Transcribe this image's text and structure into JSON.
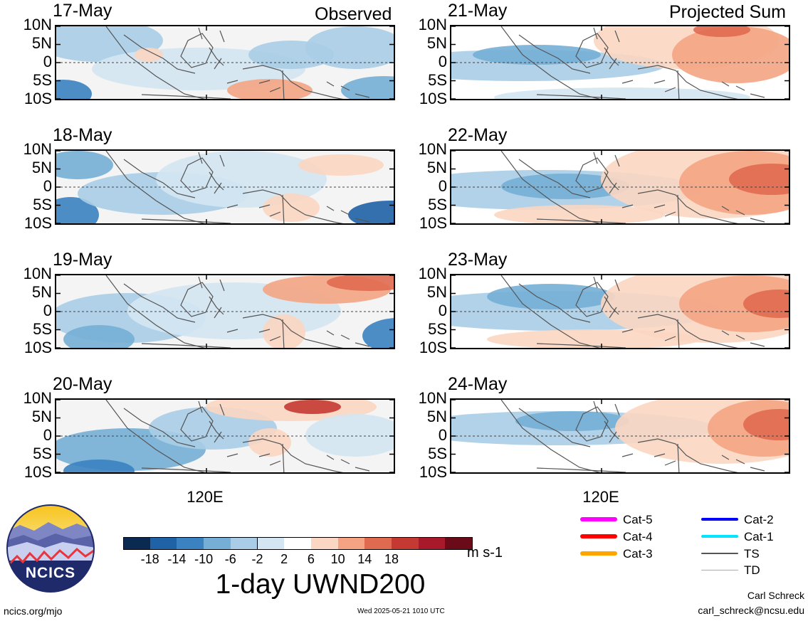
{
  "header": {
    "left_label": "Observed",
    "right_label": "Projected Sum"
  },
  "observed_panels": [
    {
      "date": "17-May"
    },
    {
      "date": "18-May"
    },
    {
      "date": "19-May"
    },
    {
      "date": "20-May"
    }
  ],
  "projected_panels": [
    {
      "date": "21-May"
    },
    {
      "date": "22-May"
    },
    {
      "date": "23-May"
    },
    {
      "date": "24-May"
    }
  ],
  "axes": {
    "lat_labels": [
      "10N",
      "5N",
      "0",
      "5S",
      "10S"
    ],
    "lon_label": "120E"
  },
  "colorbar": {
    "tick_labels": [
      "-18",
      "-14",
      "-10",
      "-6",
      "-2",
      "2",
      "6",
      "10",
      "14",
      "18"
    ],
    "colors": [
      "#0b2a52",
      "#1f62a6",
      "#3a82c0",
      "#76afd6",
      "#a9cde6",
      "#d4e6f2",
      "#ffffff",
      "#fbd6c2",
      "#f4a483",
      "#e06a50",
      "#c43a33",
      "#a81a2a",
      "#6b0a18"
    ],
    "units": "m s-1",
    "title": "1-day UWND200"
  },
  "storm_legend": [
    {
      "label": "Cat-5",
      "color": "#ff00ff",
      "width": 6
    },
    {
      "label": "Cat-4",
      "color": "#ff0000",
      "width": 6
    },
    {
      "label": "Cat-3",
      "color": "#ffa500",
      "width": 6
    },
    {
      "label": "Cat-2",
      "color": "#0000ff",
      "width": 4
    },
    {
      "label": "Cat-1",
      "color": "#00e5ff",
      "width": 4
    },
    {
      "label": "TS",
      "color": "#555555",
      "width": 2
    },
    {
      "label": "TD",
      "color": "#aaaaaa",
      "width": 1
    }
  ],
  "footer": {
    "website": "ncics.org/mjo",
    "timestamp": "Wed 2025-05-21 1010 UTC",
    "author": "Carl Schreck",
    "email": "carl_schreck@ncsu.edu",
    "logo_text": "NCICS"
  }
}
